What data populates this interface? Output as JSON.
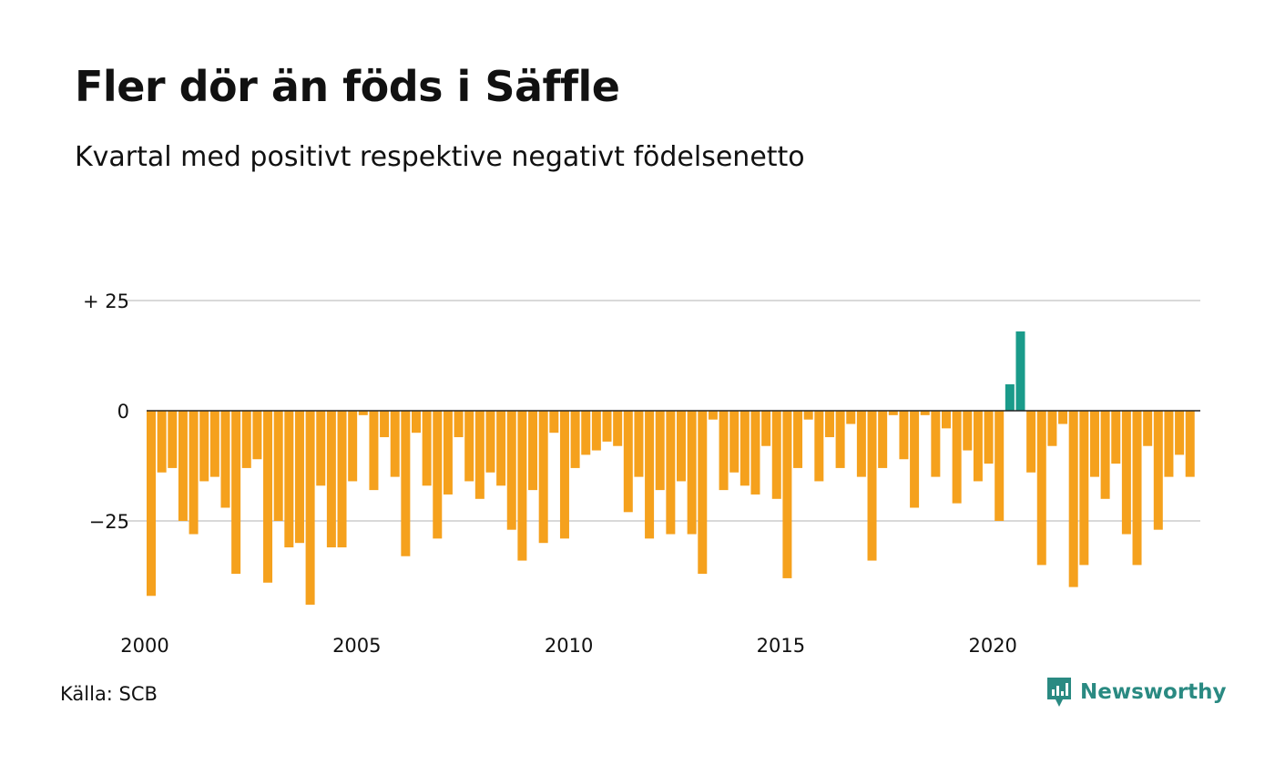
{
  "title": "Fler dör än föds i Säffle",
  "subtitle": "Kvartal med positivt respektive negativt födelsenetto",
  "source": "Källa: SCB",
  "brand": "Newsworthy",
  "icons": {
    "brand_logo": "newsworthy-logo-icon"
  },
  "colors": {
    "negative": "#f5a11d",
    "positive": "#1a9b8a",
    "grid": "#d9d9d9",
    "zero_line": "#222222",
    "brand": "#2a8a82"
  },
  "chart_data": {
    "type": "bar",
    "grid": true,
    "y_tick_values": [
      25,
      0,
      -25
    ],
    "y_tick_labels": [
      "+ 25",
      "0",
      "−25"
    ],
    "x_tick_labels": [
      "2000",
      "2005",
      "2010",
      "2015",
      "2020"
    ],
    "first_quarter": "2000 Q1",
    "ylim": [
      -45,
      25
    ],
    "values": [
      -42,
      -14,
      -13,
      -25,
      -28,
      -16,
      -15,
      -22,
      -37,
      -13,
      -11,
      -39,
      -25,
      -31,
      -30,
      -44,
      -17,
      -31,
      -31,
      -16,
      -1,
      -18,
      -6,
      -15,
      -33,
      -5,
      -17,
      -29,
      -19,
      -6,
      -16,
      -20,
      -14,
      -17,
      -27,
      -34,
      -18,
      -30,
      -5,
      -29,
      -13,
      -10,
      -9,
      -7,
      -8,
      -23,
      -15,
      -29,
      -18,
      -28,
      -16,
      -28,
      -37,
      -2,
      -18,
      -14,
      -17,
      -19,
      -8,
      -20,
      -38,
      -13,
      -2,
      -16,
      -6,
      -13,
      -3,
      -15,
      -34,
      -13,
      -1,
      -11,
      -22,
      -1,
      -15,
      -4,
      -21,
      -9,
      -16,
      -12,
      -25,
      6,
      18,
      -14,
      -35,
      -8,
      -3,
      -40,
      -35,
      -15,
      -20,
      -12,
      -28,
      -35,
      -8,
      -27,
      -15,
      -10,
      -15
    ]
  }
}
